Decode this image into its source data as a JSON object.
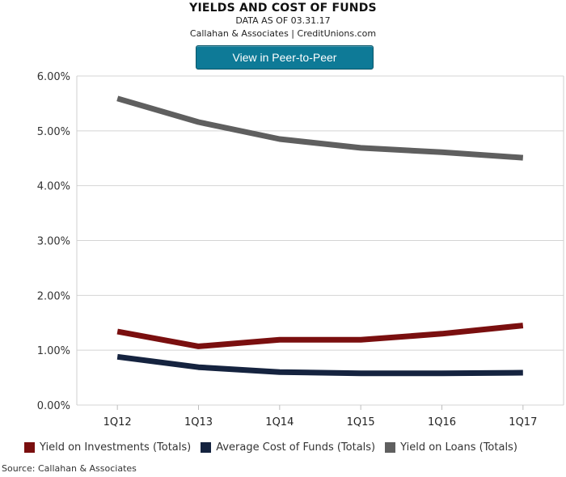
{
  "header": {
    "title": "YIELDS AND COST OF FUNDS",
    "date_line": "DATA AS OF 03.31.17",
    "credit_line": "Callahan & Associates | CreditUnions.com"
  },
  "cta": {
    "label": "View in Peer-to-Peer"
  },
  "source": "Source: Callahan & Associates",
  "chart_data": {
    "type": "line",
    "title": "YIELDS AND COST OF FUNDS",
    "categories": [
      "1Q12",
      "1Q13",
      "1Q14",
      "1Q15",
      "1Q16",
      "1Q17"
    ],
    "ylim": [
      0,
      6
    ],
    "yticks": [
      "0.00%",
      "1.00%",
      "2.00%",
      "3.00%",
      "4.00%",
      "5.00%",
      "6.00%"
    ],
    "grid": "horizontal",
    "legend_position": "bottom",
    "series": [
      {
        "name": "Yield on Investments (Totals)",
        "color": "#7a0f0f",
        "values": [
          1.34,
          1.07,
          1.19,
          1.19,
          1.3,
          1.45
        ]
      },
      {
        "name": "Average Cost of Funds (Totals)",
        "color": "#15233f",
        "values": [
          0.88,
          0.69,
          0.6,
          0.58,
          0.58,
          0.59
        ]
      },
      {
        "name": "Yield on Loans (Totals)",
        "color": "#5f5f5f",
        "values": [
          5.59,
          5.16,
          4.85,
          4.69,
          4.61,
          4.51
        ]
      }
    ]
  }
}
